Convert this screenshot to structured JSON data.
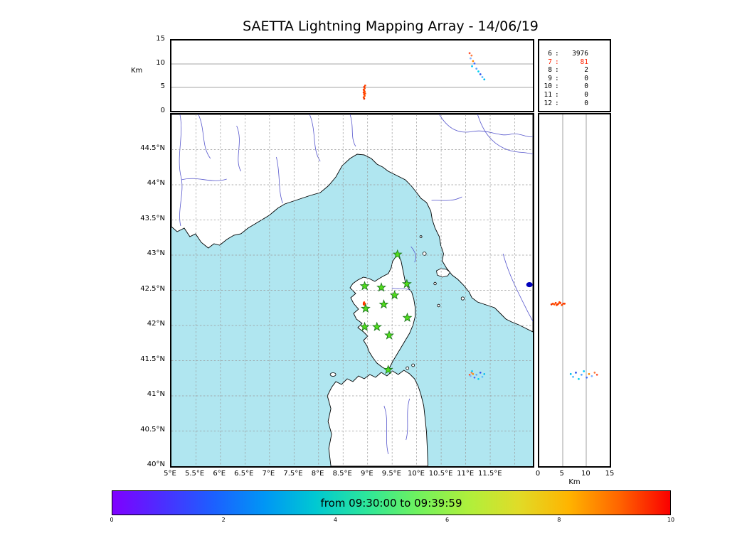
{
  "title": "SAETTA Lightning Mapping Array - 14/06/19",
  "top_panel": {
    "ylabel": "Km",
    "yticks": [
      "15",
      "10",
      "5",
      "0"
    ]
  },
  "stats_panel": {
    "rows": [
      {
        "level": "6",
        "count": "3976",
        "highlight": false
      },
      {
        "level": "7",
        "count": "81",
        "highlight": true
      },
      {
        "level": "8",
        "count": "2",
        "highlight": false
      },
      {
        "level": "9",
        "count": "0",
        "highlight": false
      },
      {
        "level": "10",
        "count": "0",
        "highlight": false
      },
      {
        "level": "11",
        "count": "0",
        "highlight": false
      },
      {
        "level": "12",
        "count": "0",
        "highlight": false
      }
    ],
    "highlight_color": "#ff2200"
  },
  "map_panel": {
    "lat_ticks": [
      "44.5°N",
      "44°N",
      "43.5°N",
      "43°N",
      "42.5°N",
      "42°N",
      "41.5°N",
      "41°N",
      "40.5°N",
      "40°N"
    ],
    "lon_ticks": [
      "5°E",
      "5.5°E",
      "6°E",
      "6.5°E",
      "7°E",
      "7.5°E",
      "8°E",
      "8.5°E",
      "9°E",
      "9.5°E",
      "10°E",
      "10.5°E",
      "11°E",
      "11.5°E"
    ],
    "sea_color": "#b0e6f0",
    "land_color": "#ffffff",
    "river_color": "#5555cc",
    "grid_color": "#999999",
    "station_color": "#52dd1c",
    "station_edge": "#1d7a1d"
  },
  "right_panel": {
    "xlabel": "Km",
    "xticks": [
      "0",
      "5",
      "10",
      "15"
    ]
  },
  "colorbar": {
    "label": "from 09:30:00 to 09:39:59",
    "ticks": [
      "0",
      "2",
      "4",
      "6",
      "8",
      "10"
    ],
    "gradient": [
      "#7f00ff",
      "#4b2fff",
      "#1c60ff",
      "#0096f5",
      "#00c8d2",
      "#2ce69b",
      "#6ef25f",
      "#aef03c",
      "#e0dc28",
      "#ffb400",
      "#ff6400",
      "#fa0000"
    ]
  },
  "chart_data": {
    "type": "scatter",
    "title": "SAETTA Lightning Mapping Array - 14/06/19",
    "time_window": {
      "start": "09:30:00",
      "end": "09:39:59"
    },
    "colorbar_axis": {
      "ticks": [
        0,
        2,
        4,
        6,
        8,
        10
      ],
      "meaning": "minutes after 09:30:00, violet (early) to red (late)"
    },
    "projection": {
      "lon_range": [
        5.0,
        12.37
      ],
      "lat_range": [
        40.0,
        45.0
      ],
      "alt_range_km": [
        0,
        15
      ],
      "grid_step_deg": 0.5,
      "alt_gridlines_km": [
        5,
        10
      ]
    },
    "station_level_counts": [
      {
        "stations": 6,
        "sources": 3976
      },
      {
        "stations": 7,
        "sources": 81
      },
      {
        "stations": 8,
        "sources": 2
      },
      {
        "stations": 9,
        "sources": 0
      },
      {
        "stations": 10,
        "sources": 0
      },
      {
        "stations": 11,
        "sources": 0
      },
      {
        "stations": 12,
        "sources": 0
      }
    ],
    "stations_lon_lat": [
      [
        9.61,
        43.01
      ],
      [
        8.94,
        42.56
      ],
      [
        9.28,
        42.54
      ],
      [
        9.8,
        42.59
      ],
      [
        9.55,
        42.43
      ],
      [
        8.96,
        42.24
      ],
      [
        9.33,
        42.3
      ],
      [
        9.81,
        42.11
      ],
      [
        8.94,
        41.98
      ],
      [
        9.19,
        41.98
      ],
      [
        9.44,
        41.86
      ],
      [
        9.42,
        41.37
      ]
    ],
    "sources": [
      {
        "lon": 8.93,
        "lat": 42.3,
        "alt": 2.6,
        "c": "#e83000"
      },
      {
        "lon": 8.92,
        "lat": 42.31,
        "alt": 2.9,
        "c": "#ff4400"
      },
      {
        "lon": 8.94,
        "lat": 42.3,
        "alt": 3.2,
        "c": "#ff5500"
      },
      {
        "lon": 8.93,
        "lat": 42.32,
        "alt": 3.5,
        "c": "#ff3c00"
      },
      {
        "lon": 8.95,
        "lat": 42.29,
        "alt": 3.7,
        "c": "#ff4d00"
      },
      {
        "lon": 8.92,
        "lat": 42.3,
        "alt": 3.9,
        "c": "#ff3000"
      },
      {
        "lon": 8.94,
        "lat": 42.31,
        "alt": 4.1,
        "c": "#ff5a00"
      },
      {
        "lon": 8.93,
        "lat": 42.33,
        "alt": 4.3,
        "c": "#ff4400"
      },
      {
        "lon": 8.92,
        "lat": 42.32,
        "alt": 4.5,
        "c": "#ff3800"
      },
      {
        "lon": 8.94,
        "lat": 42.29,
        "alt": 4.8,
        "c": "#ff4f00"
      },
      {
        "lon": 8.93,
        "lat": 42.31,
        "alt": 5.1,
        "c": "#f23000"
      },
      {
        "lon": 8.95,
        "lat": 42.31,
        "alt": 5.4,
        "c": "#ff4400"
      },
      {
        "lon": 11.08,
        "lat": 41.3,
        "alt": 12.3,
        "c": "#ff5533"
      },
      {
        "lon": 11.12,
        "lat": 41.33,
        "alt": 11.8,
        "c": "#ff7b3d"
      },
      {
        "lon": 11.1,
        "lat": 41.28,
        "alt": 11.2,
        "c": "#7fb2ff"
      },
      {
        "lon": 11.15,
        "lat": 41.31,
        "alt": 10.6,
        "c": "#ff8a00"
      },
      {
        "lon": 11.18,
        "lat": 41.26,
        "alt": 10.1,
        "c": "#3d6bff"
      },
      {
        "lon": 11.13,
        "lat": 41.35,
        "alt": 9.5,
        "c": "#00c8ff"
      },
      {
        "lon": 11.22,
        "lat": 41.3,
        "alt": 9.0,
        "c": "#58a6ff"
      },
      {
        "lon": 11.26,
        "lat": 41.24,
        "alt": 8.4,
        "c": "#00d2f0"
      },
      {
        "lon": 11.3,
        "lat": 41.33,
        "alt": 7.8,
        "c": "#2f55ee"
      },
      {
        "lon": 11.34,
        "lat": 41.27,
        "alt": 7.2,
        "c": "#57b8ff"
      },
      {
        "lon": 11.38,
        "lat": 41.31,
        "alt": 6.7,
        "c": "#00bbee"
      }
    ],
    "edge_marker": {
      "lon": 12.3,
      "lat": 42.58,
      "c": "#0000bb",
      "r": 4.5
    }
  }
}
